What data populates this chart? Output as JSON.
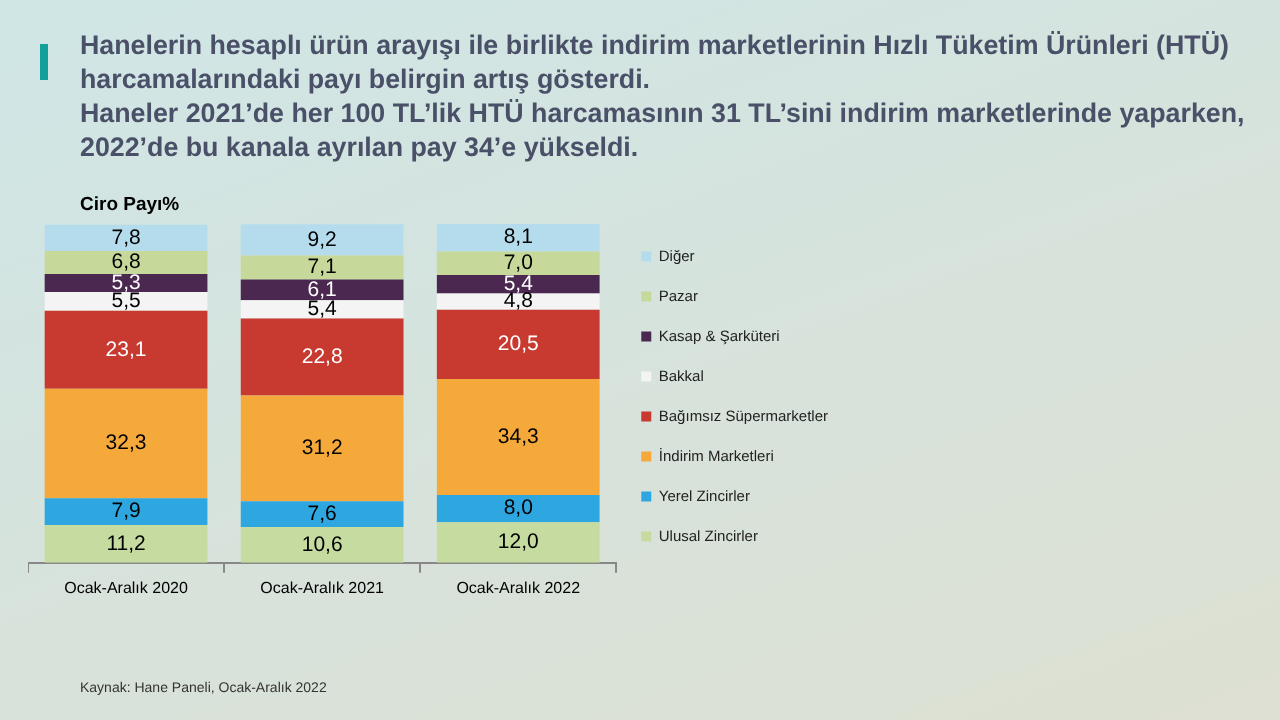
{
  "chart_data": {
    "type": "bar",
    "stacked": true,
    "title": "Hanelerin hesaplı ürün arayışı ile birlikte indirim marketlerinin Hızlı Tüketim Ürünleri (HTÜ) harcamalarındaki payı belirgin artış gösterdi.",
    "subtitle": "Haneler 2021’de her 100 TL’lik HTÜ harcamasının 31 TL’sini indirim marketlerinde yaparken, 2022’de bu kanala ayrılan pay 34’e yükseldi.",
    "ylabel": "Ciro Payı%",
    "categories": [
      "Ocak-Aralık 2020",
      "Ocak-Aralık 2021",
      "Ocak-Aralık 2022"
    ],
    "series": [
      {
        "name": "Ulusal Zincirler",
        "color": "#c5dba0",
        "values": [
          11.2,
          10.6,
          12.0
        ],
        "value_labels": [
          "11,2",
          "10,6",
          "12,0"
        ]
      },
      {
        "name": "Yerel Zincirler",
        "color": "#2ea6e0",
        "values": [
          7.9,
          7.6,
          8.0
        ],
        "value_labels": [
          "7,9",
          "7,6",
          "8,0"
        ]
      },
      {
        "name": "İndirim Marketleri",
        "color": "#f4a93a",
        "values": [
          32.3,
          31.2,
          34.3
        ],
        "value_labels": [
          "32,3",
          "31,2",
          "34,3"
        ]
      },
      {
        "name": "Bağımsız Süpermarketler",
        "color": "#c8392f",
        "values": [
          23.1,
          22.8,
          20.5
        ],
        "value_labels": [
          "23,1",
          "22,8",
          "20,5"
        ]
      },
      {
        "name": "Bakkal",
        "color": "#f4f4f4",
        "values": [
          5.5,
          5.4,
          4.8
        ],
        "value_labels": [
          "5,5",
          "5,4",
          "4,8"
        ]
      },
      {
        "name": "Kasap & Şarküteri",
        "color": "#4b2850",
        "values": [
          5.3,
          6.1,
          5.4
        ],
        "value_labels": [
          "5,3",
          "6,1",
          "5,4"
        ]
      },
      {
        "name": "Pazar",
        "color": "#c6d89a",
        "values": [
          6.8,
          7.1,
          7.0
        ],
        "value_labels": [
          "6,8",
          "7,1",
          "7,0"
        ]
      },
      {
        "name": "Diğer",
        "color": "#b5dced",
        "values": [
          7.8,
          9.2,
          8.1
        ],
        "value_labels": [
          "7,8",
          "9,2",
          "8,1"
        ]
      }
    ],
    "legend": "right",
    "grid": false,
    "annotations": [
      "Kaynak: Hane Paneli, Ocak-Aralık 2022"
    ]
  }
}
